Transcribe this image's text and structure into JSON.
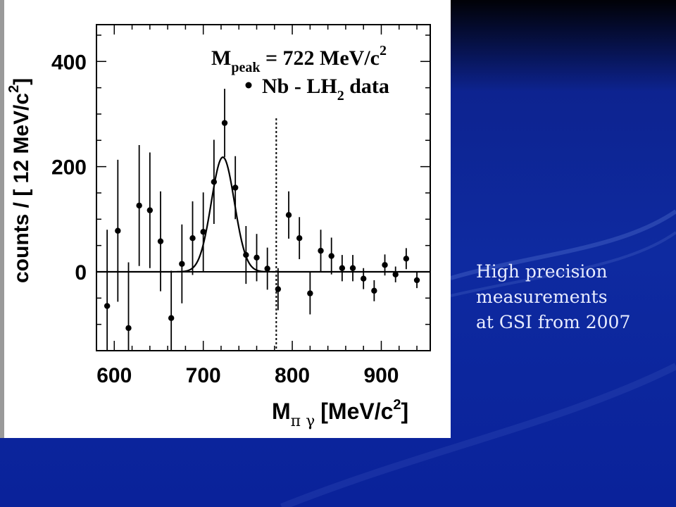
{
  "slide": {
    "caption_lines": [
      "High precision",
      "measurements",
      "at GSI from 2007"
    ],
    "background_color": "#0e2aa0"
  },
  "chart_data": {
    "type": "scatter",
    "xlabel": {
      "main": "M",
      "sub": "π γ",
      "unit": "[MeV/c",
      "unit_sup": "2",
      "unit_end": "]"
    },
    "ylabel": {
      "main": "counts / [ 12 MeV/c",
      "sup": "2",
      "end": "]"
    },
    "xlim": [
      580,
      955
    ],
    "ylim": [
      -150,
      470
    ],
    "x_ticks": [
      600,
      700,
      800,
      900
    ],
    "y_ticks": [
      0,
      200,
      400
    ],
    "legend": {
      "peak_label_main": "M",
      "peak_label_sub": "peak",
      "peak_label_value": " = 722 MeV/c",
      "peak_label_sup": "2",
      "series_label_main": "Nb - LH",
      "series_label_sub": "2",
      "series_label_end": " data",
      "placement": "top-right"
    },
    "reference_line_x": 782,
    "fit": {
      "type": "gaussian",
      "center": 722,
      "sigma": 13,
      "amplitude": 218
    },
    "series": [
      {
        "points": [
          {
            "x": 592,
            "y": -65,
            "err": 145
          },
          {
            "x": 604,
            "y": 78,
            "err": 135
          },
          {
            "x": 616,
            "y": -107,
            "err": 125
          },
          {
            "x": 628,
            "y": 126,
            "err": 115
          },
          {
            "x": 640,
            "y": 117,
            "err": 110
          },
          {
            "x": 652,
            "y": 58,
            "err": 95
          },
          {
            "x": 664,
            "y": -88,
            "err": 90
          },
          {
            "x": 676,
            "y": 15,
            "err": 75
          },
          {
            "x": 688,
            "y": 64,
            "err": 70
          },
          {
            "x": 700,
            "y": 76,
            "err": 75
          },
          {
            "x": 712,
            "y": 171,
            "err": 80
          },
          {
            "x": 724,
            "y": 283,
            "err": 65
          },
          {
            "x": 736,
            "y": 160,
            "err": 60
          },
          {
            "x": 748,
            "y": 32,
            "err": 55
          },
          {
            "x": 760,
            "y": 27,
            "err": 45
          },
          {
            "x": 772,
            "y": 6,
            "err": 40
          },
          {
            "x": 784,
            "y": -33,
            "err": 40
          },
          {
            "x": 796,
            "y": 108,
            "err": 45
          },
          {
            "x": 808,
            "y": 64,
            "err": 40
          },
          {
            "x": 820,
            "y": -41,
            "err": 40
          },
          {
            "x": 832,
            "y": 40,
            "err": 40
          },
          {
            "x": 844,
            "y": 30,
            "err": 35
          },
          {
            "x": 856,
            "y": 7,
            "err": 25
          },
          {
            "x": 868,
            "y": 7,
            "err": 25
          },
          {
            "x": 880,
            "y": -13,
            "err": 20
          },
          {
            "x": 892,
            "y": -36,
            "err": 20
          },
          {
            "x": 904,
            "y": 13,
            "err": 20
          },
          {
            "x": 916,
            "y": -5,
            "err": 15
          },
          {
            "x": 928,
            "y": 25,
            "err": 20
          },
          {
            "x": 940,
            "y": -16,
            "err": 15
          }
        ]
      }
    ]
  }
}
